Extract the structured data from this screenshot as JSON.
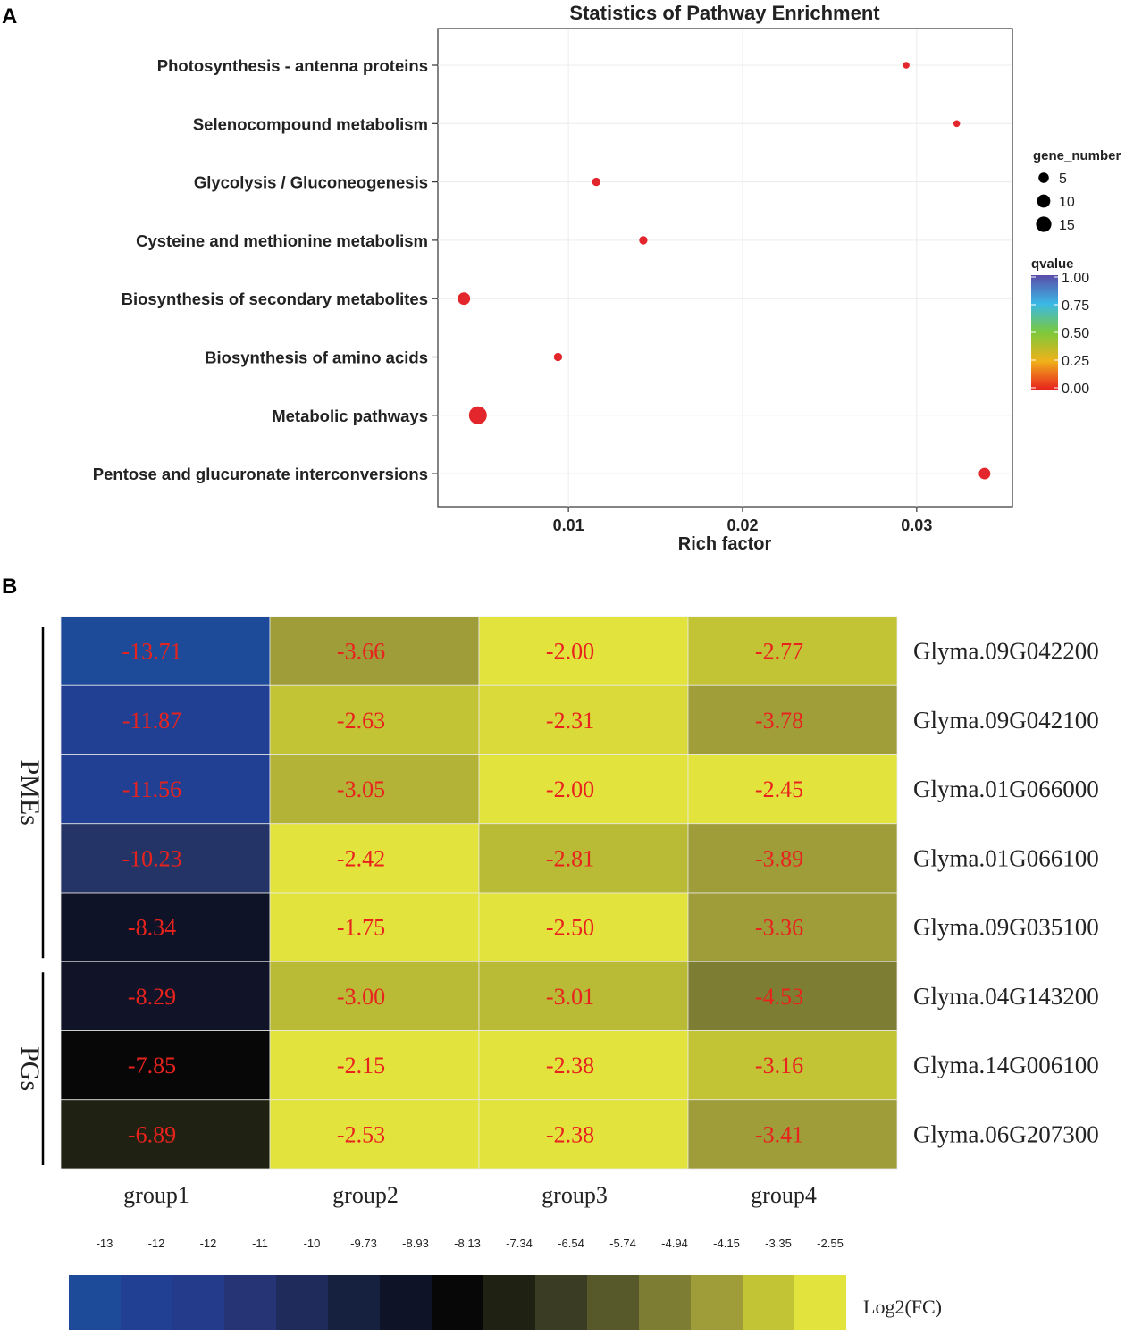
{
  "panel_a": {
    "label": "A",
    "chart_data": {
      "type": "scatter",
      "title": "Statistics of Pathway Enrichment",
      "xlabel": "Rich factor",
      "ylabel": "",
      "xticks": [
        0.01,
        0.02,
        0.03
      ],
      "xtick_labels": [
        "0.01",
        "0.02",
        "0.03"
      ],
      "xlim": [
        0.0025,
        0.0355
      ],
      "grid": true,
      "categories": [
        "Photosynthesis - antenna proteins",
        "Selenocompound metabolism",
        "Glycolysis / Gluconeogenesis",
        "Cysteine and methionine metabolism",
        "Biosynthesis of secondary metabolites",
        "Biosynthesis of amino acids",
        "Metabolic pathways",
        "Pentose and glucuronate interconversions"
      ],
      "points": [
        {
          "pathway": "Photosynthesis - antenna proteins",
          "rich_factor": 0.0294,
          "gene_number": 1,
          "qvalue": 0.02
        },
        {
          "pathway": "Selenocompound metabolism",
          "rich_factor": 0.0323,
          "gene_number": 1,
          "qvalue": 0.02
        },
        {
          "pathway": "Glycolysis / Gluconeogenesis",
          "rich_factor": 0.0116,
          "gene_number": 2,
          "qvalue": 0.02
        },
        {
          "pathway": "Cysteine and methionine metabolism",
          "rich_factor": 0.0143,
          "gene_number": 2,
          "qvalue": 0.02
        },
        {
          "pathway": "Biosynthesis of secondary metabolites",
          "rich_factor": 0.004,
          "gene_number": 6,
          "qvalue": 0.0
        },
        {
          "pathway": "Biosynthesis of amino acids",
          "rich_factor": 0.0094,
          "gene_number": 2,
          "qvalue": 0.02
        },
        {
          "pathway": "Metabolic pathways",
          "rich_factor": 0.0048,
          "gene_number": 15,
          "qvalue": 0.0
        },
        {
          "pathway": "Pentose and glucuronate interconversions",
          "rich_factor": 0.0339,
          "gene_number": 5,
          "qvalue": 0.0
        }
      ],
      "legend_size": {
        "title": "gene_number",
        "values": [
          5,
          10,
          15
        ],
        "labels": [
          "5",
          "10",
          "15"
        ]
      },
      "legend_color": {
        "title": "qvalue",
        "values": [
          1.0,
          0.75,
          0.5,
          0.25,
          0.0
        ],
        "labels": [
          "1.00",
          "0.75",
          "0.50",
          "0.25",
          "0.00"
        ],
        "colors": [
          "#e8231e",
          "#f0b21a",
          "#7cc93b",
          "#3ab8e6",
          "#5b4ca8"
        ]
      },
      "point_color": "#e3262b"
    }
  },
  "panel_b": {
    "label": "B",
    "chart_data": {
      "type": "heatmap",
      "columns": [
        "group1",
        "group2",
        "group3",
        "group4"
      ],
      "rows": [
        "Glyma.09G042200",
        "Glyma.09G042100",
        "Glyma.01G066000",
        "Glyma.01G066100",
        "Glyma.09G035100",
        "Glyma.04G143200",
        "Glyma.14G006100",
        "Glyma.06G207300"
      ],
      "values": [
        [
          -13.71,
          -3.66,
          -2.0,
          -2.77
        ],
        [
          -11.87,
          -2.63,
          -2.31,
          -3.78
        ],
        [
          -11.56,
          -3.05,
          -2.0,
          -2.45
        ],
        [
          -10.23,
          -2.42,
          -2.81,
          -3.89
        ],
        [
          -8.34,
          -1.75,
          -2.5,
          -3.36
        ],
        [
          -8.29,
          -3.0,
          -3.01,
          -4.53
        ],
        [
          -7.85,
          -2.15,
          -2.38,
          -3.16
        ],
        [
          -6.89,
          -2.53,
          -2.38,
          -3.41
        ]
      ],
      "value_labels": [
        [
          "-13.71",
          "-3.66",
          "-2.00",
          "-2.77"
        ],
        [
          "-11.87",
          "-2.63",
          "-2.31",
          "-3.78"
        ],
        [
          "-11.56",
          "-3.05",
          "-2.00",
          "-2.45"
        ],
        [
          "-10.23",
          "-2.42",
          "-2.81",
          "-3.89"
        ],
        [
          "-8.34",
          "-1.75",
          "-2.50",
          "-3.36"
        ],
        [
          "-8.29",
          "-3.00",
          "-3.01",
          "-4.53"
        ],
        [
          "-7.85",
          "-2.15",
          "-2.38",
          "-3.16"
        ],
        [
          "-6.89",
          "-2.53",
          "-2.38",
          "-3.41"
        ]
      ],
      "cell_colors": [
        [
          "#1d4b9a",
          "#9f9c3a",
          "#e3e33d",
          "#c2c335"
        ],
        [
          "#213f93",
          "#c2c335",
          "#dada3b",
          "#a09e39"
        ],
        [
          "#213f93",
          "#b2b337",
          "#e3e33d",
          "#e3e33d"
        ],
        [
          "#243466",
          "#e3e33d",
          "#b9ba36",
          "#9f9c3a"
        ],
        [
          "#0f1328",
          "#e3e33d",
          "#e3e33d",
          "#9f9c3a"
        ],
        [
          "#111428",
          "#b9ba36",
          "#b9ba36",
          "#7e7d34"
        ],
        [
          "#070708",
          "#e3e33d",
          "#e3e33d",
          "#c2c335"
        ],
        [
          "#1f2212",
          "#e3e33d",
          "#e3e33d",
          "#9f9c3a"
        ]
      ],
      "row_groups": [
        {
          "label": "PMEs",
          "rows": [
            0,
            4
          ]
        },
        {
          "label": "PGs",
          "rows": [
            5,
            7
          ]
        }
      ],
      "value_label_color": "#e8231e",
      "colorbar": {
        "title": "Log2(FC)",
        "tick_labels": [
          "-13",
          "-12",
          "-12",
          "-11",
          "-10",
          "-9.73",
          "-8.93",
          "-8.13",
          "-7.34",
          "-6.54",
          "-5.74",
          "-4.94",
          "-4.15",
          "-3.35",
          "-2.55"
        ],
        "colors": [
          "#1d4b9a",
          "#213f93",
          "#243a8a",
          "#263374",
          "#1f2b5a",
          "#16213f",
          "#0f1328",
          "#070708",
          "#1f2212",
          "#3a3c23",
          "#58592b",
          "#7e7d34",
          "#9f9c3a",
          "#c2c335",
          "#e3e33d"
        ]
      }
    }
  }
}
